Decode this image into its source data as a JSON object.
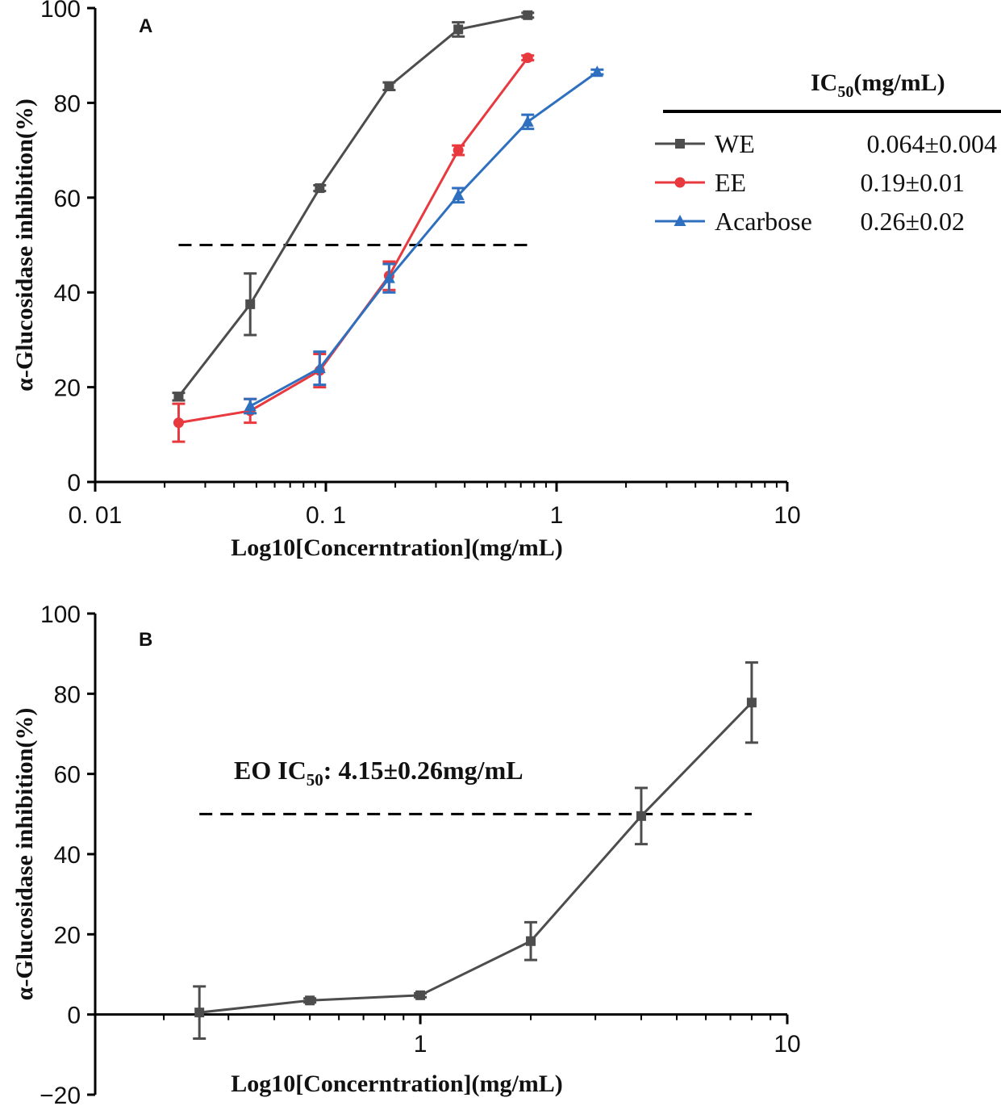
{
  "chart_data": [
    {
      "panel_label": "A",
      "type": "line",
      "xscale": "log",
      "xlim": [
        0.01,
        10
      ],
      "ylim": [
        0,
        100
      ],
      "xticks": [
        0.01,
        0.1,
        1,
        10
      ],
      "xtick_labels": [
        "0. 01",
        "0. 1",
        "1",
        "10"
      ],
      "yticks": [
        0,
        20,
        40,
        60,
        80,
        100
      ],
      "ytick_labels": [
        "0",
        "20",
        "40",
        "60",
        "80",
        "100"
      ],
      "xlabel": "Log10[Concerntration](mg/mL)",
      "ylabel": "α-Glucosidase inhibition(%)",
      "reference_line": {
        "y": 50,
        "x_from": 0.023,
        "x_to": 0.8,
        "style": "dashed"
      },
      "legend_header": {
        "text": "IC",
        "subscript": "50",
        "suffix": "(mg/mL)"
      },
      "legend_position": "right",
      "series": [
        {
          "name": "WE",
          "ic50": "0.064±0.004",
          "color": "#4d4d4d",
          "marker": "square",
          "x": [
            0.023,
            0.047,
            0.094,
            0.188,
            0.375,
            0.75
          ],
          "y": [
            18,
            37.5,
            62,
            83.5,
            95.5,
            98.5
          ],
          "err": [
            0.8,
            6.5,
            0.6,
            0.8,
            1.5,
            0.5
          ]
        },
        {
          "name": "EE",
          "ic50": "0.19±0.01",
          "color": "#e8393f",
          "marker": "circle",
          "x": [
            0.023,
            0.047,
            0.094,
            0.188,
            0.375,
            0.75
          ],
          "y": [
            12.5,
            15,
            23.5,
            43.5,
            70,
            89.5
          ],
          "err": [
            4,
            2.5,
            3.5,
            3,
            1,
            0.5
          ]
        },
        {
          "name": "Acarbose",
          "ic50": "0.26±0.02",
          "color": "#2f6fbf",
          "marker": "triangle",
          "x": [
            0.047,
            0.094,
            0.188,
            0.375,
            0.75,
            1.5
          ],
          "y": [
            16,
            24,
            43,
            60.5,
            76,
            86.5
          ],
          "err": [
            1.5,
            3.5,
            3,
            1.5,
            1.5,
            0.5
          ]
        }
      ]
    },
    {
      "panel_label": "B",
      "type": "line",
      "xscale": "log",
      "xlim": [
        0.13,
        10
      ],
      "ylim": [
        -20,
        100
      ],
      "xticks": [
        1,
        10
      ],
      "xtick_labels": [
        "1",
        "10"
      ],
      "yticks": [
        -20,
        0,
        20,
        40,
        60,
        80,
        100
      ],
      "ytick_labels": [
        "−20",
        "0",
        "20",
        "40",
        "60",
        "80",
        "100"
      ],
      "xlabel": "Log10[Concerntration](mg/mL)",
      "ylabel": "α-Glucosidase inhibition(%)",
      "reference_line": {
        "y": 50,
        "x_from": 0.25,
        "x_to": 8,
        "style": "dashed"
      },
      "annotation": {
        "prefix": "EO IC",
        "subscript": "50",
        "suffix": ": 4.15±0.26mg/mL"
      },
      "series": [
        {
          "name": "EO",
          "color": "#4d4d4d",
          "marker": "square",
          "x": [
            0.25,
            0.5,
            1,
            2,
            4,
            8
          ],
          "y": [
            0.5,
            3.5,
            4.8,
            18.3,
            49.5,
            77.8
          ],
          "err": [
            6.5,
            0.5,
            0.5,
            4.7,
            7,
            10
          ]
        }
      ]
    }
  ]
}
